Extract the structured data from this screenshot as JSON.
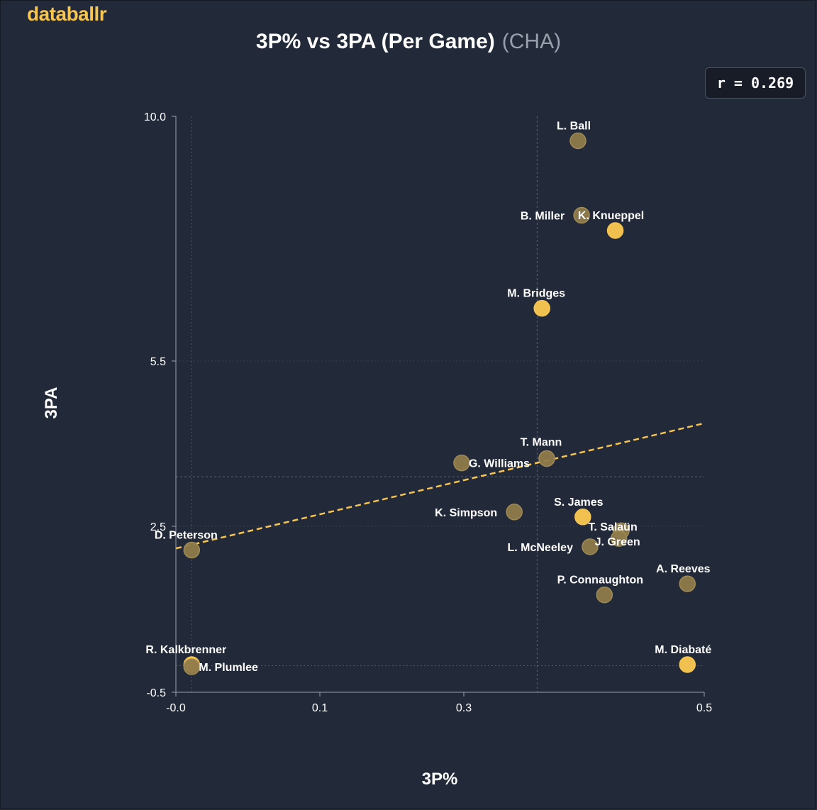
{
  "brand": "databallr",
  "header": {
    "title": "3P% vs 3PA (Per Game)",
    "team": "(CHA)"
  },
  "correlation": {
    "label": "r = 0.269"
  },
  "colors": {
    "accent": "#f5c451",
    "background": "#222938"
  },
  "chart_data": {
    "type": "scatter",
    "xlabel": "3P%",
    "ylabel": "3PA",
    "x_ticks": [
      "-0.0",
      "0.1",
      "0.3",
      "0.5"
    ],
    "y_ticks": [
      "10.0",
      "5.5",
      "2.5",
      "-0.5"
    ],
    "x_tick_values": [
      0.0,
      0.1,
      0.3,
      0.5
    ],
    "y_tick_values": [
      10.0,
      5.5,
      2.5,
      -0.5
    ],
    "xlim": [
      0.0,
      0.5
    ],
    "y_axis_segments": [
      [
        10.0,
        5.5
      ],
      [
        5.5,
        2.5
      ],
      [
        2.5,
        -0.5
      ]
    ],
    "x_axis_segments": [
      [
        0.0,
        0.1
      ],
      [
        0.1,
        0.3
      ],
      [
        0.3,
        0.5
      ]
    ],
    "mean_x": 0.361,
    "mean_y": 3.4,
    "trendline": {
      "x": [
        0.0,
        0.5
      ],
      "y": [
        2.1,
        4.37
      ]
    },
    "points": [
      {
        "label": "L. Ball",
        "x": 0.395,
        "y": 9.55,
        "highlight": false
      },
      {
        "label": "B. Miller",
        "x": 0.398,
        "y": 8.18,
        "highlight": false
      },
      {
        "label": "K. Knueppel",
        "x": 0.426,
        "y": 7.9,
        "highlight": true
      },
      {
        "label": "M. Bridges",
        "x": 0.365,
        "y": 6.47,
        "highlight": true
      },
      {
        "label": "T. Mann",
        "x": 0.369,
        "y": 3.73,
        "highlight": false
      },
      {
        "label": "G. Williams",
        "x": 0.297,
        "y": 3.65,
        "highlight": false
      },
      {
        "label": "K. Simpson",
        "x": 0.342,
        "y": 2.76,
        "highlight": false
      },
      {
        "label": "S. James",
        "x": 0.399,
        "y": 2.67,
        "highlight": true
      },
      {
        "label": "T. Salaün",
        "x": 0.431,
        "y": 2.42,
        "highlight": false
      },
      {
        "label": "J. Green",
        "x": 0.429,
        "y": 2.28,
        "highlight": false
      },
      {
        "label": "L. McNeeley",
        "x": 0.405,
        "y": 2.13,
        "highlight": false
      },
      {
        "label": "D. Peterson",
        "x": 0.011,
        "y": 2.07,
        "highlight": false
      },
      {
        "label": "A. Reeves",
        "x": 0.486,
        "y": 1.46,
        "highlight": false
      },
      {
        "label": "P. Connaughton",
        "x": 0.417,
        "y": 1.26,
        "highlight": false
      },
      {
        "label": "R. Kalkbrenner",
        "x": 0.011,
        "y": 0.0,
        "highlight": true
      },
      {
        "label": "M. Plumlee",
        "x": 0.011,
        "y": -0.04,
        "highlight": false
      },
      {
        "label": "M. Diabaté",
        "x": 0.486,
        "y": 0.0,
        "highlight": true
      }
    ]
  }
}
